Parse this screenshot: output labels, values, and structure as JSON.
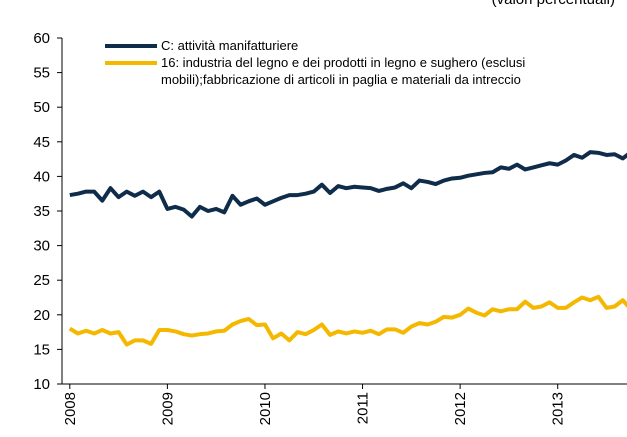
{
  "chart_data": {
    "type": "line",
    "subtitle": "(valori percentuali)",
    "x": [
      2008.0,
      2008.083,
      2008.167,
      2008.25,
      2008.333,
      2008.417,
      2008.5,
      2008.583,
      2008.667,
      2008.75,
      2008.833,
      2008.917,
      2009.0,
      2009.083,
      2009.167,
      2009.25,
      2009.333,
      2009.417,
      2009.5,
      2009.583,
      2009.667,
      2009.75,
      2009.833,
      2009.917,
      2010.0,
      2010.083,
      2010.167,
      2010.25,
      2010.333,
      2010.417,
      2010.5,
      2010.583,
      2010.667,
      2010.75,
      2010.833,
      2010.917,
      2011.0,
      2011.083,
      2011.167,
      2011.25,
      2011.333,
      2011.417,
      2011.5,
      2011.583,
      2011.667,
      2011.75,
      2011.833,
      2011.917,
      2012.0,
      2012.083,
      2012.167,
      2012.25,
      2012.333,
      2012.417,
      2012.5,
      2012.583,
      2012.667,
      2012.75,
      2012.833,
      2012.917,
      2013.0,
      2013.083,
      2013.167,
      2013.25,
      2013.333,
      2013.417,
      2013.5,
      2013.583,
      2013.667,
      2013.75
    ],
    "series": [
      {
        "name": "C: attività manifatturiere",
        "color": "#0f2d4a",
        "values": [
          37.3,
          37.5,
          37.8,
          37.8,
          36.5,
          38.3,
          37.0,
          37.8,
          37.2,
          37.8,
          37.0,
          37.8,
          35.3,
          35.6,
          35.2,
          34.2,
          35.6,
          35.0,
          35.3,
          34.8,
          37.2,
          35.9,
          36.4,
          36.8,
          35.9,
          36.4,
          36.9,
          37.3,
          37.3,
          37.5,
          37.8,
          38.8,
          37.6,
          38.6,
          38.3,
          38.5,
          38.4,
          38.3,
          37.9,
          38.2,
          38.4,
          39.0,
          38.3,
          39.4,
          39.2,
          38.9,
          39.4,
          39.7,
          39.8,
          40.1,
          40.3,
          40.5,
          40.6,
          41.3,
          41.1,
          41.7,
          41.0,
          41.3,
          41.6,
          41.9,
          41.7,
          42.3,
          43.1,
          42.7,
          43.5,
          43.4,
          43.1,
          43.2,
          42.6,
          43.5
        ]
      },
      {
        "name": "16: industria del legno e dei prodotti in legno e sughero (esclusi mobili);fabbricazione di articoli in paglia e materiali da intreccio",
        "color": "#f5b800",
        "values": [
          18.0,
          17.3,
          17.7,
          17.3,
          17.8,
          17.3,
          17.5,
          15.7,
          16.3,
          16.3,
          15.8,
          17.8,
          17.8,
          17.6,
          17.2,
          17.0,
          17.2,
          17.3,
          17.6,
          17.7,
          18.6,
          19.1,
          19.4,
          18.5,
          18.6,
          16.6,
          17.3,
          16.3,
          17.5,
          17.2,
          17.8,
          18.6,
          17.1,
          17.6,
          17.3,
          17.6,
          17.4,
          17.7,
          17.2,
          17.9,
          17.9,
          17.4,
          18.3,
          18.8,
          18.6,
          19.0,
          19.7,
          19.6,
          20.0,
          20.9,
          20.3,
          19.9,
          20.8,
          20.5,
          20.8,
          20.8,
          21.9,
          21.0,
          21.2,
          21.8,
          21.0,
          21.0,
          21.8,
          22.5,
          22.1,
          22.6,
          21.0,
          21.2,
          22.1,
          20.8
        ]
      }
    ],
    "xlim": [
      2007.92,
      2013.71
    ],
    "xticks": [
      2008,
      2009,
      2010,
      2011,
      2012,
      2013
    ],
    "ylim": [
      10,
      60
    ],
    "yticks": [
      10,
      15,
      20,
      25,
      30,
      35,
      40,
      45,
      50,
      55,
      60
    ],
    "grid": false,
    "legend": "top-left"
  }
}
